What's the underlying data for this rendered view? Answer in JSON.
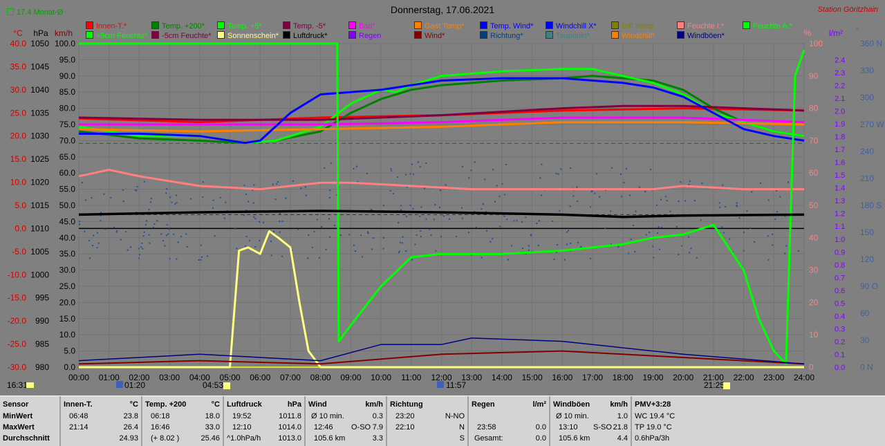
{
  "title": "Donnerstag, 17.06.2021",
  "station": "Station Göritzhain",
  "month_label": "17.4 Monat-Ø",
  "colors": {
    "bg": "#808080"
  },
  "axes": {
    "left_units": [
      "°C",
      "hPa",
      "km/h"
    ],
    "right_units": [
      "%",
      "l/m²",
      "°"
    ],
    "temp_ticks": [
      "40.0",
      "35.0",
      "30.0",
      "25.0",
      "20.0",
      "15.0",
      "10.0",
      "5.0",
      "0.0",
      "-5.0",
      "-10.0",
      "-15.0",
      "-20.0",
      "-25.0",
      "-30.0"
    ],
    "hpa_ticks": [
      "1050",
      "1045",
      "1040",
      "1035",
      "1030",
      "1025",
      "1020",
      "1015",
      "1010",
      "1005",
      "1000",
      "995",
      "990",
      "985",
      "980"
    ],
    "kmh_ticks": [
      "100.0",
      "95.0",
      "90.0",
      "85.0",
      "80.0",
      "75.0",
      "70.0",
      "65.0",
      "60.0",
      "55.0",
      "50.0",
      "45.0",
      "40.0",
      "35.0",
      "30.0",
      "25.0",
      "20.0",
      "15.0",
      "10.0",
      "5.0",
      "0.0"
    ],
    "pct_ticks": [
      "100",
      "90",
      "80",
      "70",
      "60",
      "50",
      "40",
      "30",
      "20",
      "10",
      "0"
    ],
    "rain_ticks": [
      "2.4",
      "2.3",
      "2.2",
      "2.1",
      "2.0",
      "1.9",
      "1.8",
      "1.7",
      "1.6",
      "1.5",
      "1.4",
      "1.3",
      "1.2",
      "1.1",
      "1.0",
      "0.9",
      "0.8",
      "0.7",
      "0.6",
      "0.5",
      "0.4",
      "0.3",
      "0.2",
      "0.1",
      "0.0"
    ],
    "deg_ticks": [
      "360 N",
      "330",
      "300",
      "270 W",
      "240",
      "210",
      "180 S",
      "150",
      "120",
      "90 O",
      "60",
      "30",
      "0 N"
    ],
    "time_ticks": [
      "00:00",
      "01:00",
      "02:00",
      "03:00",
      "04:00",
      "05:00",
      "06:00",
      "07:00",
      "08:00",
      "09:00",
      "10:00",
      "11:00",
      "12:00",
      "13:00",
      "14:00",
      "15:00",
      "16:00",
      "17:00",
      "18:00",
      "19:00",
      "20:00",
      "21:00",
      "22:00",
      "23:00",
      "24:00"
    ]
  },
  "sun_times": {
    "now": "16:31",
    "moonset": "01:20",
    "sunrise": "04:53",
    "noon": "11:57",
    "sunset": "21:25"
  },
  "legend": [
    {
      "label": "Innen-T.*",
      "color": "#ff0000"
    },
    {
      "label": "Temp. +200*",
      "color": "#008000"
    },
    {
      "label": "Temp. +5*",
      "color": "#00ff00"
    },
    {
      "label": "Temp. -5*",
      "color": "#800040"
    },
    {
      "label": "Bad*",
      "color": "#ff00ff"
    },
    {
      "label": "Gast Temp*",
      "color": "#ff8000"
    },
    {
      "label": "Temp. Wind*",
      "color": "#0000ff"
    },
    {
      "label": "Windchill X*",
      "color": "#0000ff"
    },
    {
      "label": "Diff Temp.",
      "color": "#808000"
    },
    {
      "label": "Feuchte I.*",
      "color": "#ff8080"
    },
    {
      "label": "Feuchte A.*",
      "color": "#00ff00"
    },
    {
      "label": "+5cm Feuchte*",
      "color": "#00ff00"
    },
    {
      "label": "-5cm Feuchte*",
      "color": "#800040"
    },
    {
      "label": "Sonnenschein*",
      "color": "#ffff80"
    },
    {
      "label": "Luftdruck*",
      "color": "#000000"
    },
    {
      "label": "Regen",
      "color": "#8000ff"
    },
    {
      "label": "Wind*",
      "color": "#800000"
    },
    {
      "label": "Richtung*",
      "color": "#004080"
    },
    {
      "label": "Taupunkt*",
      "color": "#408080"
    },
    {
      "label": "Windchill*",
      "color": "#ff8000"
    },
    {
      "label": "Windböen*",
      "color": "#000080"
    }
  ],
  "chart_data": {
    "type": "line",
    "title": "Donnerstag, 17.06.2021",
    "xlim": [
      "00:00",
      "24:00"
    ],
    "temp_ylim": [
      -30,
      40
    ],
    "pressure_ylim": [
      980,
      1050
    ],
    "wind_ylim": [
      0,
      100
    ],
    "humidity_ylim": [
      0,
      100
    ],
    "rain_ylim": [
      0,
      2.4
    ],
    "direction_ylim": [
      0,
      360
    ],
    "series": [
      {
        "name": "Innen-T.*",
        "axis": "temp",
        "x": [
          0,
          4,
          8,
          12,
          16,
          20,
          24
        ],
        "values": [
          23.8,
          23.0,
          24.0,
          24.5,
          25.5,
          26.0,
          25.5
        ]
      },
      {
        "name": "Temp. +200*",
        "axis": "temp",
        "x": [
          0,
          2,
          4,
          5.5,
          6.5,
          8,
          9,
          10,
          11,
          12,
          14,
          16,
          17,
          18,
          19,
          20,
          21,
          22,
          23,
          24
        ],
        "values": [
          21,
          19.5,
          19,
          18.5,
          19,
          21,
          25,
          28,
          30,
          31,
          32,
          32.5,
          33,
          32.5,
          32,
          30,
          26,
          23,
          21,
          20
        ]
      },
      {
        "name": "Temp. +5*",
        "axis": "temp",
        "x": [
          0,
          2,
          4,
          5.5,
          6.5,
          8,
          9,
          10,
          10.5,
          11,
          12,
          14,
          16,
          17,
          18,
          19,
          20,
          21,
          22,
          23,
          24
        ],
        "values": [
          22,
          20,
          20,
          18.5,
          19,
          22,
          27,
          30,
          29.5,
          31,
          33,
          34,
          34.5,
          34.5,
          33,
          31.5,
          29,
          25,
          23,
          21,
          20
        ]
      },
      {
        "name": "Temp. -5*",
        "axis": "temp",
        "x": [
          0,
          4,
          8,
          12,
          16,
          18,
          20,
          22,
          24
        ],
        "values": [
          24,
          23.5,
          23.5,
          24.5,
          26,
          26.5,
          26.5,
          26,
          25.5
        ]
      },
      {
        "name": "Bad*",
        "axis": "temp",
        "x": [
          0,
          4,
          8,
          12,
          16,
          20,
          24
        ],
        "values": [
          22.5,
          22.5,
          22.5,
          23,
          24,
          24,
          23
        ]
      },
      {
        "name": "Gast Temp*",
        "axis": "temp",
        "x": [
          0,
          4,
          8,
          12,
          16,
          20,
          24
        ],
        "values": [
          21.5,
          21,
          21.5,
          22,
          23,
          23,
          22.5
        ]
      },
      {
        "name": "Temp. Wind*",
        "axis": "temp",
        "x": [
          0,
          2,
          4,
          5.5,
          6,
          7,
          8,
          9,
          10,
          11,
          12,
          14,
          16,
          17,
          18,
          19,
          20,
          21,
          22,
          23,
          24
        ],
        "values": [
          20.5,
          20.5,
          20,
          18.5,
          19,
          25,
          29,
          29.5,
          30,
          31,
          32,
          32.5,
          32.5,
          32,
          31.5,
          30.5,
          28.5,
          25,
          21.5,
          20,
          19
        ]
      },
      {
        "name": "Feuchte I.*",
        "axis": "humidity",
        "x": [
          0,
          1,
          2,
          4,
          6,
          8,
          9,
          11,
          13,
          15,
          17,
          19,
          20,
          22,
          24
        ],
        "values": [
          59,
          61,
          59,
          56,
          55,
          57,
          57,
          56,
          55,
          55,
          55,
          55,
          56,
          55,
          55
        ]
      },
      {
        "name": "Feuchte A.*",
        "axis": "humidity",
        "x": [
          0,
          8.55,
          8.6,
          9,
          10,
          11,
          12,
          14,
          16,
          18,
          19,
          20,
          21,
          22,
          22.5,
          23,
          23.4,
          23.7,
          24
        ],
        "values": [
          100,
          100,
          8,
          13,
          25,
          34,
          35,
          35,
          36,
          38,
          40,
          41,
          44,
          30,
          15,
          5,
          1,
          90,
          98
        ]
      },
      {
        "name": "Sonnenschein*",
        "axis": "wind",
        "x": [
          0,
          5,
          5.3,
          5.6,
          6,
          6.3,
          6.6,
          7,
          7.3,
          7.6,
          8,
          24
        ],
        "values": [
          0,
          0,
          36,
          37,
          35,
          42,
          40,
          37,
          20,
          5,
          0,
          0
        ]
      },
      {
        "name": "Luftdruck*",
        "axis": "pressure",
        "x": [
          0,
          4,
          8,
          12,
          16,
          18,
          20,
          24
        ],
        "values": [
          1013,
          1013.5,
          1013.8,
          1013.5,
          1013.0,
          1012.5,
          1012.8,
          1013.0
        ]
      },
      {
        "name": "Wind*",
        "axis": "wind",
        "x": [
          0,
          4,
          8,
          12,
          16,
          20,
          24
        ],
        "values": [
          1,
          2,
          1,
          4,
          5,
          3,
          1
        ]
      },
      {
        "name": "Windböen*",
        "axis": "wind",
        "x": [
          0,
          4,
          8,
          10,
          12,
          13,
          16,
          20,
          24
        ],
        "values": [
          2,
          4,
          2,
          7,
          7,
          9,
          8,
          4,
          1
        ]
      }
    ]
  },
  "table": {
    "rows": [
      "Sensor",
      "MinWert",
      "MaxWert",
      "Durchschnitt"
    ],
    "innen": {
      "h": "Innen-T.",
      "u": "°C",
      "min_t": "06:48",
      "min_v": "23.8",
      "max_t": "21:14",
      "max_v": "26.4",
      "avg": "24.93"
    },
    "temp": {
      "h": "Temp. +200",
      "u": "°C",
      "min_t": "06:18",
      "min_v": "18.0",
      "max_t": "16:46",
      "max_v": "33.0",
      "avg_note": "(+ 8.02 )",
      "avg": "25.46"
    },
    "druck": {
      "h": "Luftdruck",
      "u": "hPa",
      "min_t": "19:52",
      "min_v": "1011.8",
      "max_t": "12:10",
      "max_v": "1014.0",
      "avg_note": "^1.0hPa/h",
      "avg": "1013.0"
    },
    "wind": {
      "h": "Wind",
      "u": "km/h",
      "min_t": "Ø 10 min.",
      "min_v": "0.3",
      "max_t": "12:46",
      "max_d": "O-SO",
      "max_v": "7.9",
      "avg_t": "105.6 km",
      "avg": "3.3"
    },
    "richtung": {
      "h": "Richtung",
      "min_t": "23:20",
      "min_v": "N-NO",
      "max_t": "22:10",
      "max_v": "N",
      "avg": "S"
    },
    "regen": {
      "h": "Regen",
      "u": "l/m²",
      "max_t": "23:58",
      "max_v": "0.0",
      "avg_t": "Gesamt:",
      "avg": "0.0"
    },
    "boeen": {
      "h": "Windböen",
      "u": "km/h",
      "min_t": "Ø 10 min.",
      "min_v": "1.0",
      "max_t": "13:10",
      "max_d": "S-SO",
      "max_v": "21.8",
      "avg_t": "105.6 km",
      "avg": "4.4"
    },
    "pmv": {
      "h": "PMV+3:28",
      "r1": "WC 19.4 °C",
      "r2": "TP 19.0 °C",
      "r3": "0.6hPa/3h"
    }
  }
}
